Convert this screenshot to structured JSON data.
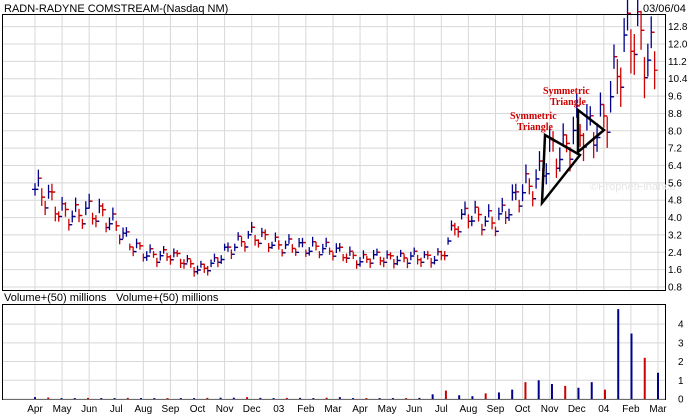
{
  "chart_data": {
    "type": "bar",
    "title": "RADN-RADYNE COMSTREAM-(Nasdaq NM)",
    "date": "03/06/04",
    "watermark": "©ProphetFinance",
    "price_axis": {
      "range": [
        0.8,
        13.2
      ],
      "ticks": [
        "12.8",
        "12.0",
        "11.2",
        "10.4",
        "9.6",
        "8.8",
        "8.0",
        "7.2",
        "6.4",
        "5.6",
        "4.8",
        "4.0",
        "3.2",
        "2.4",
        "1.6",
        "0.8"
      ]
    },
    "volume_axis": {
      "label": "Volume+(50) millions",
      "label_repeat": "Volume+(50) millions",
      "range": [
        0,
        4.7
      ],
      "ticks": [
        "4",
        "3",
        "2",
        "1",
        "0"
      ]
    },
    "x_axis": {
      "months": [
        "Apr",
        "May",
        "Jun",
        "Jul",
        "Aug",
        "Sep",
        "Oct",
        "Nov",
        "Dec",
        "03",
        "Feb",
        "Mar",
        "Apr",
        "May",
        "Jun",
        "Jul",
        "Aug",
        "Sep",
        "Oct",
        "Nov",
        "Dec",
        "04",
        "Feb",
        "Mar"
      ]
    },
    "annotations": [
      {
        "text_line1": "Symmetric",
        "text_line2": "Triangle",
        "shape": "triangle"
      },
      {
        "text_line1": "Symmetric",
        "text_line2": "Triangle",
        "shape": "triangle"
      }
    ],
    "price_series": [
      {
        "name": "",
        "x_index": 0.0,
        "price": 5.3
      },
      {
        "name": "",
        "x_index": 0.5,
        "price": 4.9
      },
      {
        "name": "",
        "x_index": 1.0,
        "price": 4.2
      },
      {
        "name": "",
        "x_index": 1.5,
        "price": 4.1
      },
      {
        "name": "",
        "x_index": 2.0,
        "price": 4.3
      },
      {
        "name": "",
        "x_index": 2.5,
        "price": 4.1
      },
      {
        "name": "",
        "x_index": 3.0,
        "price": 3.6
      },
      {
        "name": "",
        "x_index": 3.5,
        "price": 2.8
      },
      {
        "name": "",
        "x_index": 4.0,
        "price": 2.4
      },
      {
        "name": "",
        "x_index": 4.5,
        "price": 2.2
      },
      {
        "name": "",
        "x_index": 5.0,
        "price": 2.3
      },
      {
        "name": "",
        "x_index": 5.5,
        "price": 2.0
      },
      {
        "name": "",
        "x_index": 6.0,
        "price": 1.6
      },
      {
        "name": "",
        "x_index": 6.5,
        "price": 1.8
      },
      {
        "name": "",
        "x_index": 7.0,
        "price": 2.4
      },
      {
        "name": "",
        "x_index": 7.5,
        "price": 2.8
      },
      {
        "name": "",
        "x_index": 8.0,
        "price": 3.2
      },
      {
        "name": "",
        "x_index": 8.5,
        "price": 3.0
      },
      {
        "name": "",
        "x_index": 9.0,
        "price": 2.7
      },
      {
        "name": "",
        "x_index": 9.5,
        "price": 2.7
      },
      {
        "name": "",
        "x_index": 10.0,
        "price": 2.6
      },
      {
        "name": "",
        "x_index": 10.5,
        "price": 2.6
      },
      {
        "name": "",
        "x_index": 11.0,
        "price": 2.5
      },
      {
        "name": "",
        "x_index": 11.5,
        "price": 2.3
      },
      {
        "name": "",
        "x_index": 12.0,
        "price": 2.0
      },
      {
        "name": "",
        "x_index": 12.5,
        "price": 2.2
      },
      {
        "name": "",
        "x_index": 13.0,
        "price": 2.1
      },
      {
        "name": "",
        "x_index": 13.5,
        "price": 2.1
      },
      {
        "name": "",
        "x_index": 14.0,
        "price": 2.2
      },
      {
        "name": "",
        "x_index": 14.5,
        "price": 2.1
      },
      {
        "name": "",
        "x_index": 15.0,
        "price": 2.2
      },
      {
        "name": "",
        "x_index": 15.5,
        "price": 3.6
      },
      {
        "name": "",
        "x_index": 16.0,
        "price": 4.2
      },
      {
        "name": "",
        "x_index": 16.5,
        "price": 3.9
      },
      {
        "name": "",
        "x_index": 17.0,
        "price": 3.8
      },
      {
        "name": "",
        "x_index": 17.5,
        "price": 4.5
      },
      {
        "name": "",
        "x_index": 18.0,
        "price": 5.3
      },
      {
        "name": "",
        "x_index": 18.5,
        "price": 5.6
      },
      {
        "name": "",
        "x_index": 19.0,
        "price": 7.0
      },
      {
        "name": "",
        "x_index": 19.5,
        "price": 7.0
      },
      {
        "name": "",
        "x_index": 20.0,
        "price": 8.2
      },
      {
        "name": "",
        "x_index": 20.5,
        "price": 8.0
      },
      {
        "name": "",
        "x_index": 21.0,
        "price": 8.4
      },
      {
        "name": "",
        "x_index": 21.5,
        "price": 10.8
      },
      {
        "name": "",
        "x_index": 22.0,
        "price": 12.7
      },
      {
        "name": "",
        "x_index": 22.5,
        "price": 11.8
      },
      {
        "name": "",
        "x_index": 23.0,
        "price": 10.6
      }
    ],
    "volume_series": [
      0.1,
      0.08,
      0.05,
      0.05,
      0.06,
      0.05,
      0.05,
      0.06,
      0.05,
      0.05,
      0.05,
      0.05,
      0.05,
      0.06,
      0.07,
      0.07,
      0.1,
      0.06,
      0.05,
      0.06,
      0.06,
      0.05,
      0.07,
      0.1,
      0.05,
      0.05,
      0.05,
      0.05,
      0.05,
      0.06,
      0.25,
      0.45,
      0.2,
      0.15,
      0.3,
      0.35,
      0.5,
      0.9,
      1.0,
      0.8,
      0.7,
      0.6,
      0.9,
      0.5,
      4.8,
      3.5,
      2.2,
      1.4
    ]
  }
}
